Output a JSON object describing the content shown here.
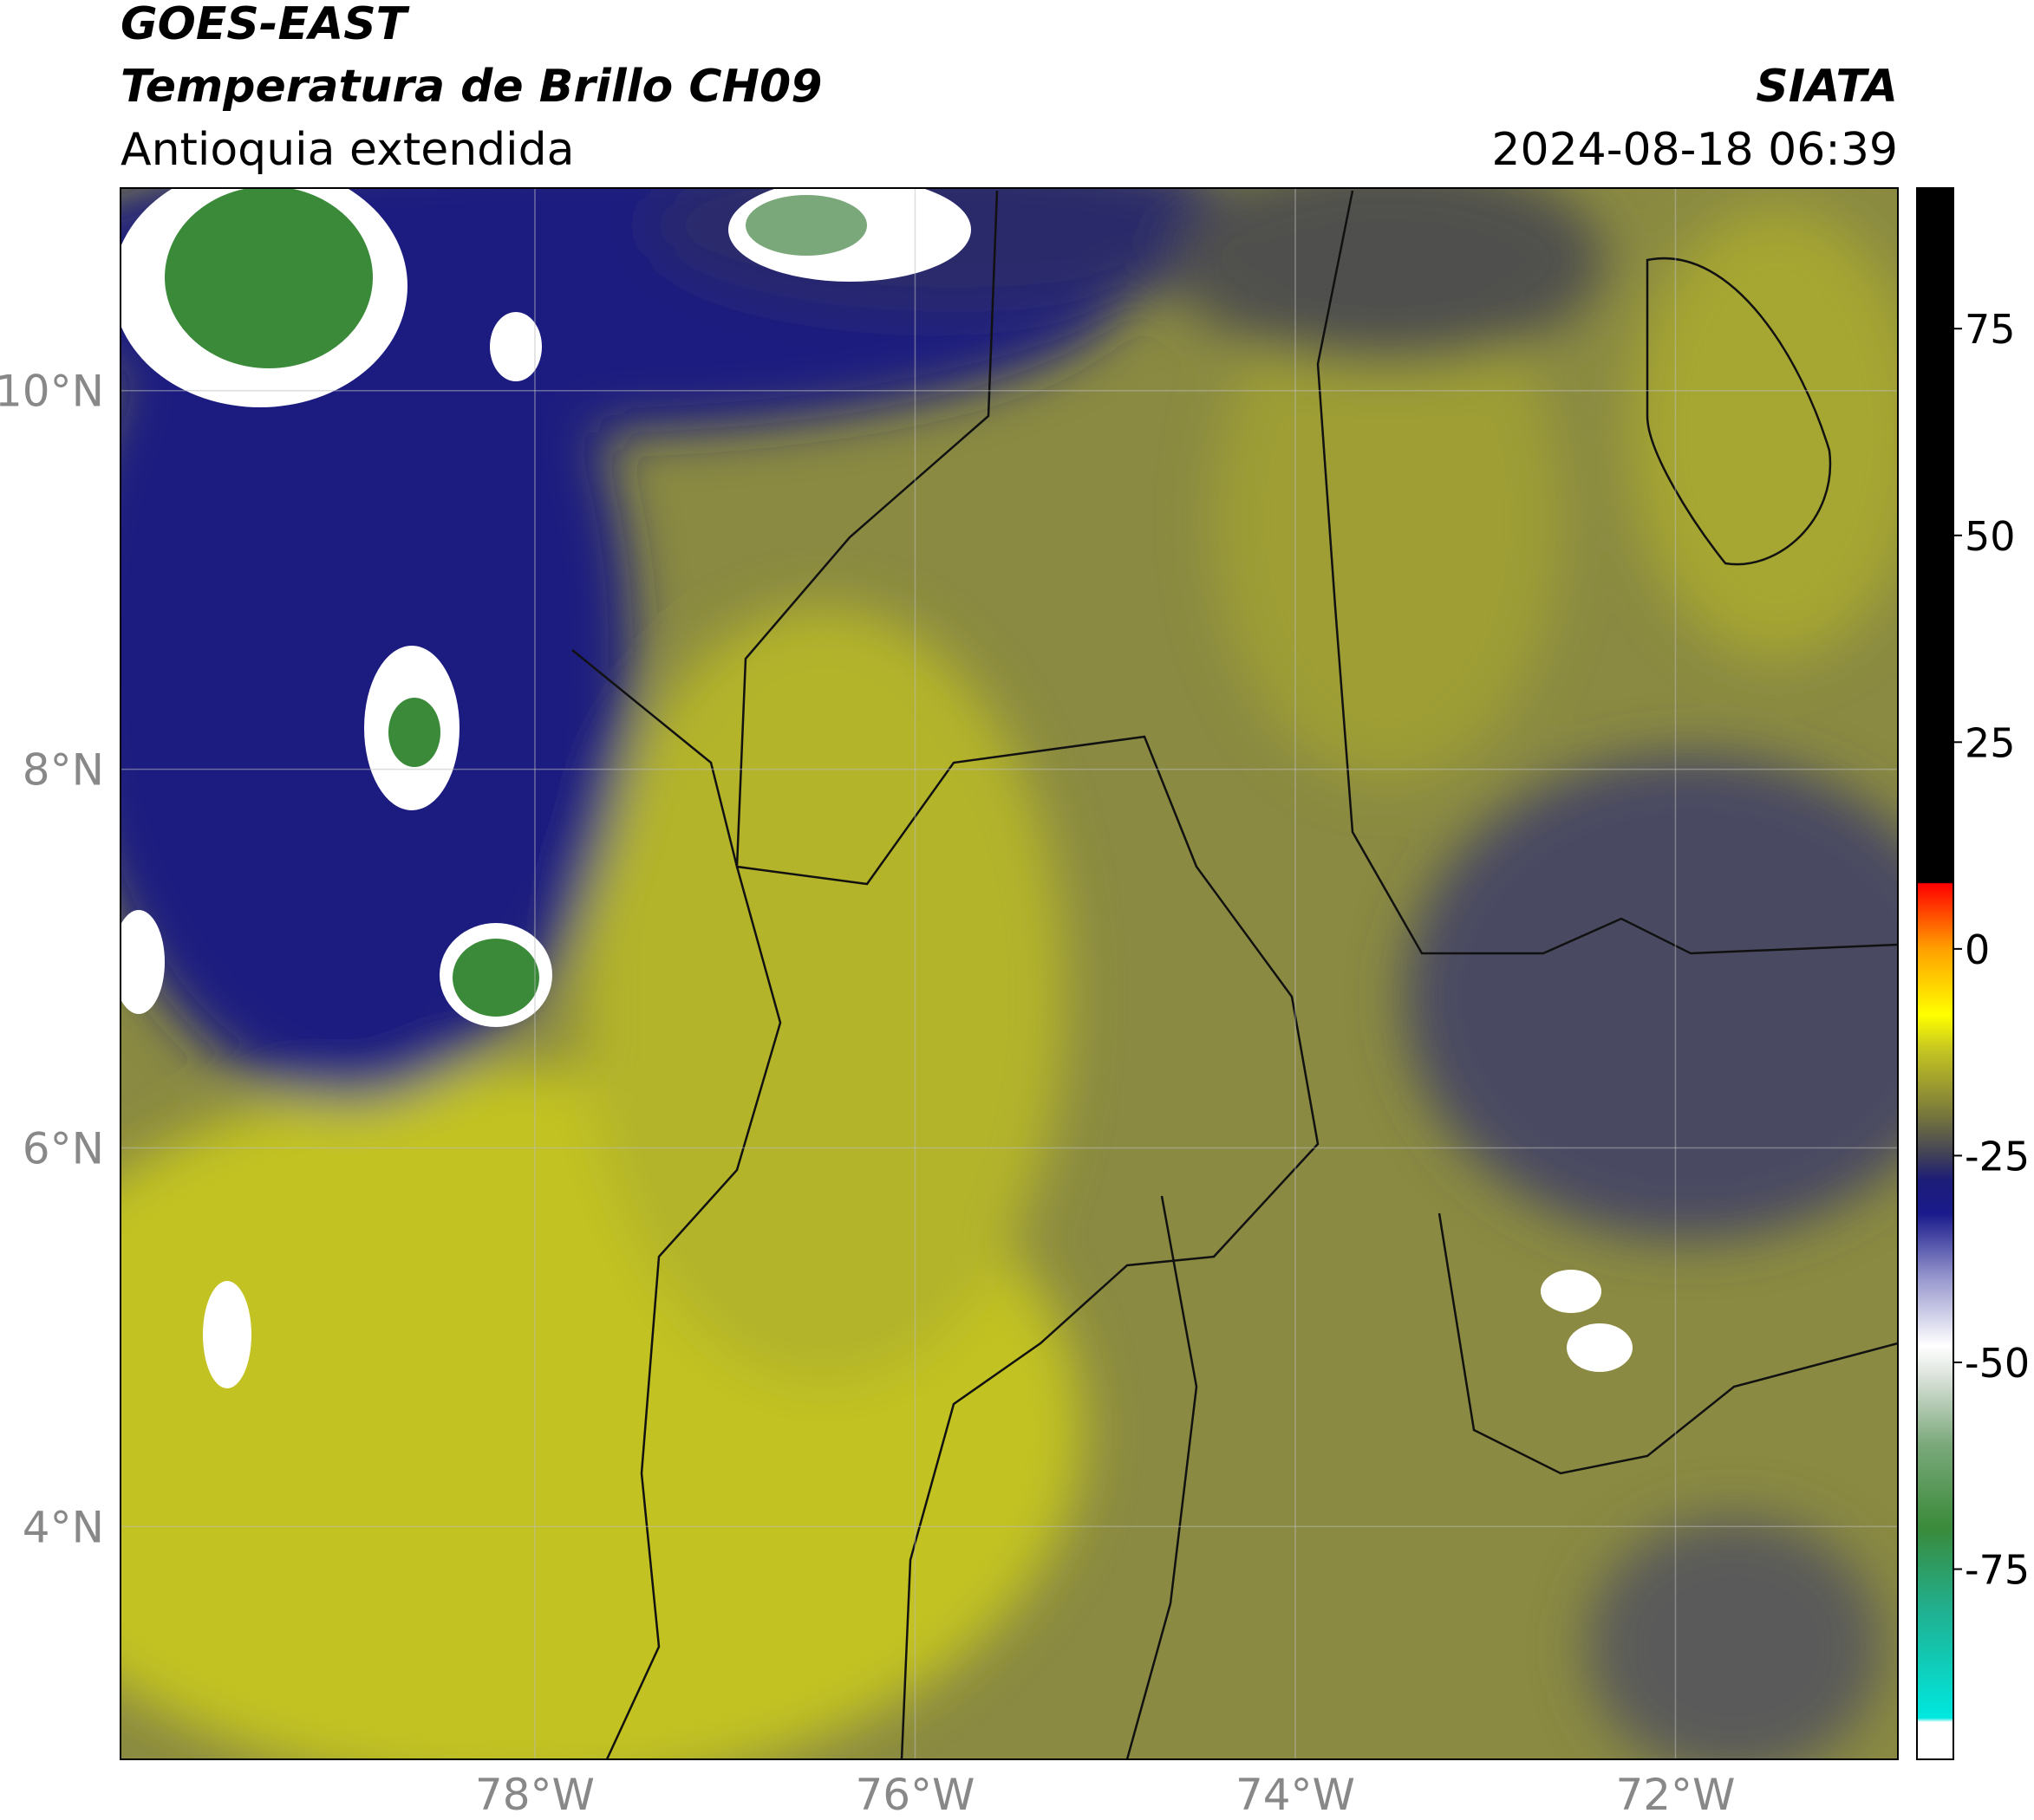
{
  "header": {
    "title": "GOES-EAST",
    "subtitle": "Temperatura de Brillo CH09",
    "region": "Antioquia extendida",
    "source": "SIATA",
    "datetime": "2024-08-18 06:39"
  },
  "map": {
    "xlim": [
      -80.18,
      -70.83
    ],
    "ylim": [
      2.77,
      11.07
    ],
    "xticks": [
      {
        "value": -78,
        "label": "78°W"
      },
      {
        "value": -76,
        "label": "76°W"
      },
      {
        "value": -74,
        "label": "74°W"
      },
      {
        "value": -72,
        "label": "72°W"
      }
    ],
    "yticks": [
      {
        "value": 4,
        "label": "4°N"
      },
      {
        "value": 6,
        "label": "6°N"
      },
      {
        "value": 8,
        "label": "8°N"
      },
      {
        "value": 10,
        "label": "10°N"
      }
    ],
    "grid": true
  },
  "colorbar": {
    "clim": [
      -98,
      92
    ],
    "ticks": [
      -75,
      -50,
      -25,
      0,
      25,
      50,
      75
    ],
    "stops": [
      {
        "value": -98,
        "color": "#ffffff"
      },
      {
        "value": -93.5,
        "color": "#ffffff"
      },
      {
        "value": -93,
        "color": "#00e8e0"
      },
      {
        "value": -80,
        "color": "#20b090"
      },
      {
        "value": -70,
        "color": "#3a8a3a"
      },
      {
        "value": -60,
        "color": "#7aa87a"
      },
      {
        "value": -52,
        "color": "#d8e0d8"
      },
      {
        "value": -48,
        "color": "#ffffff"
      },
      {
        "value": -40,
        "color": "#9a9ad0"
      },
      {
        "value": -32,
        "color": "#1a1a8c"
      },
      {
        "value": -28,
        "color": "#1c1c78"
      },
      {
        "value": -25,
        "color": "#404058"
      },
      {
        "value": -20,
        "color": "#78783c"
      },
      {
        "value": -12,
        "color": "#c8c820"
      },
      {
        "value": -8,
        "color": "#ffff00"
      },
      {
        "value": 0,
        "color": "#ffa000"
      },
      {
        "value": 7.9,
        "color": "#ff0000"
      },
      {
        "value": 8,
        "color": "#000000"
      },
      {
        "value": 92,
        "color": "#000000"
      }
    ]
  }
}
